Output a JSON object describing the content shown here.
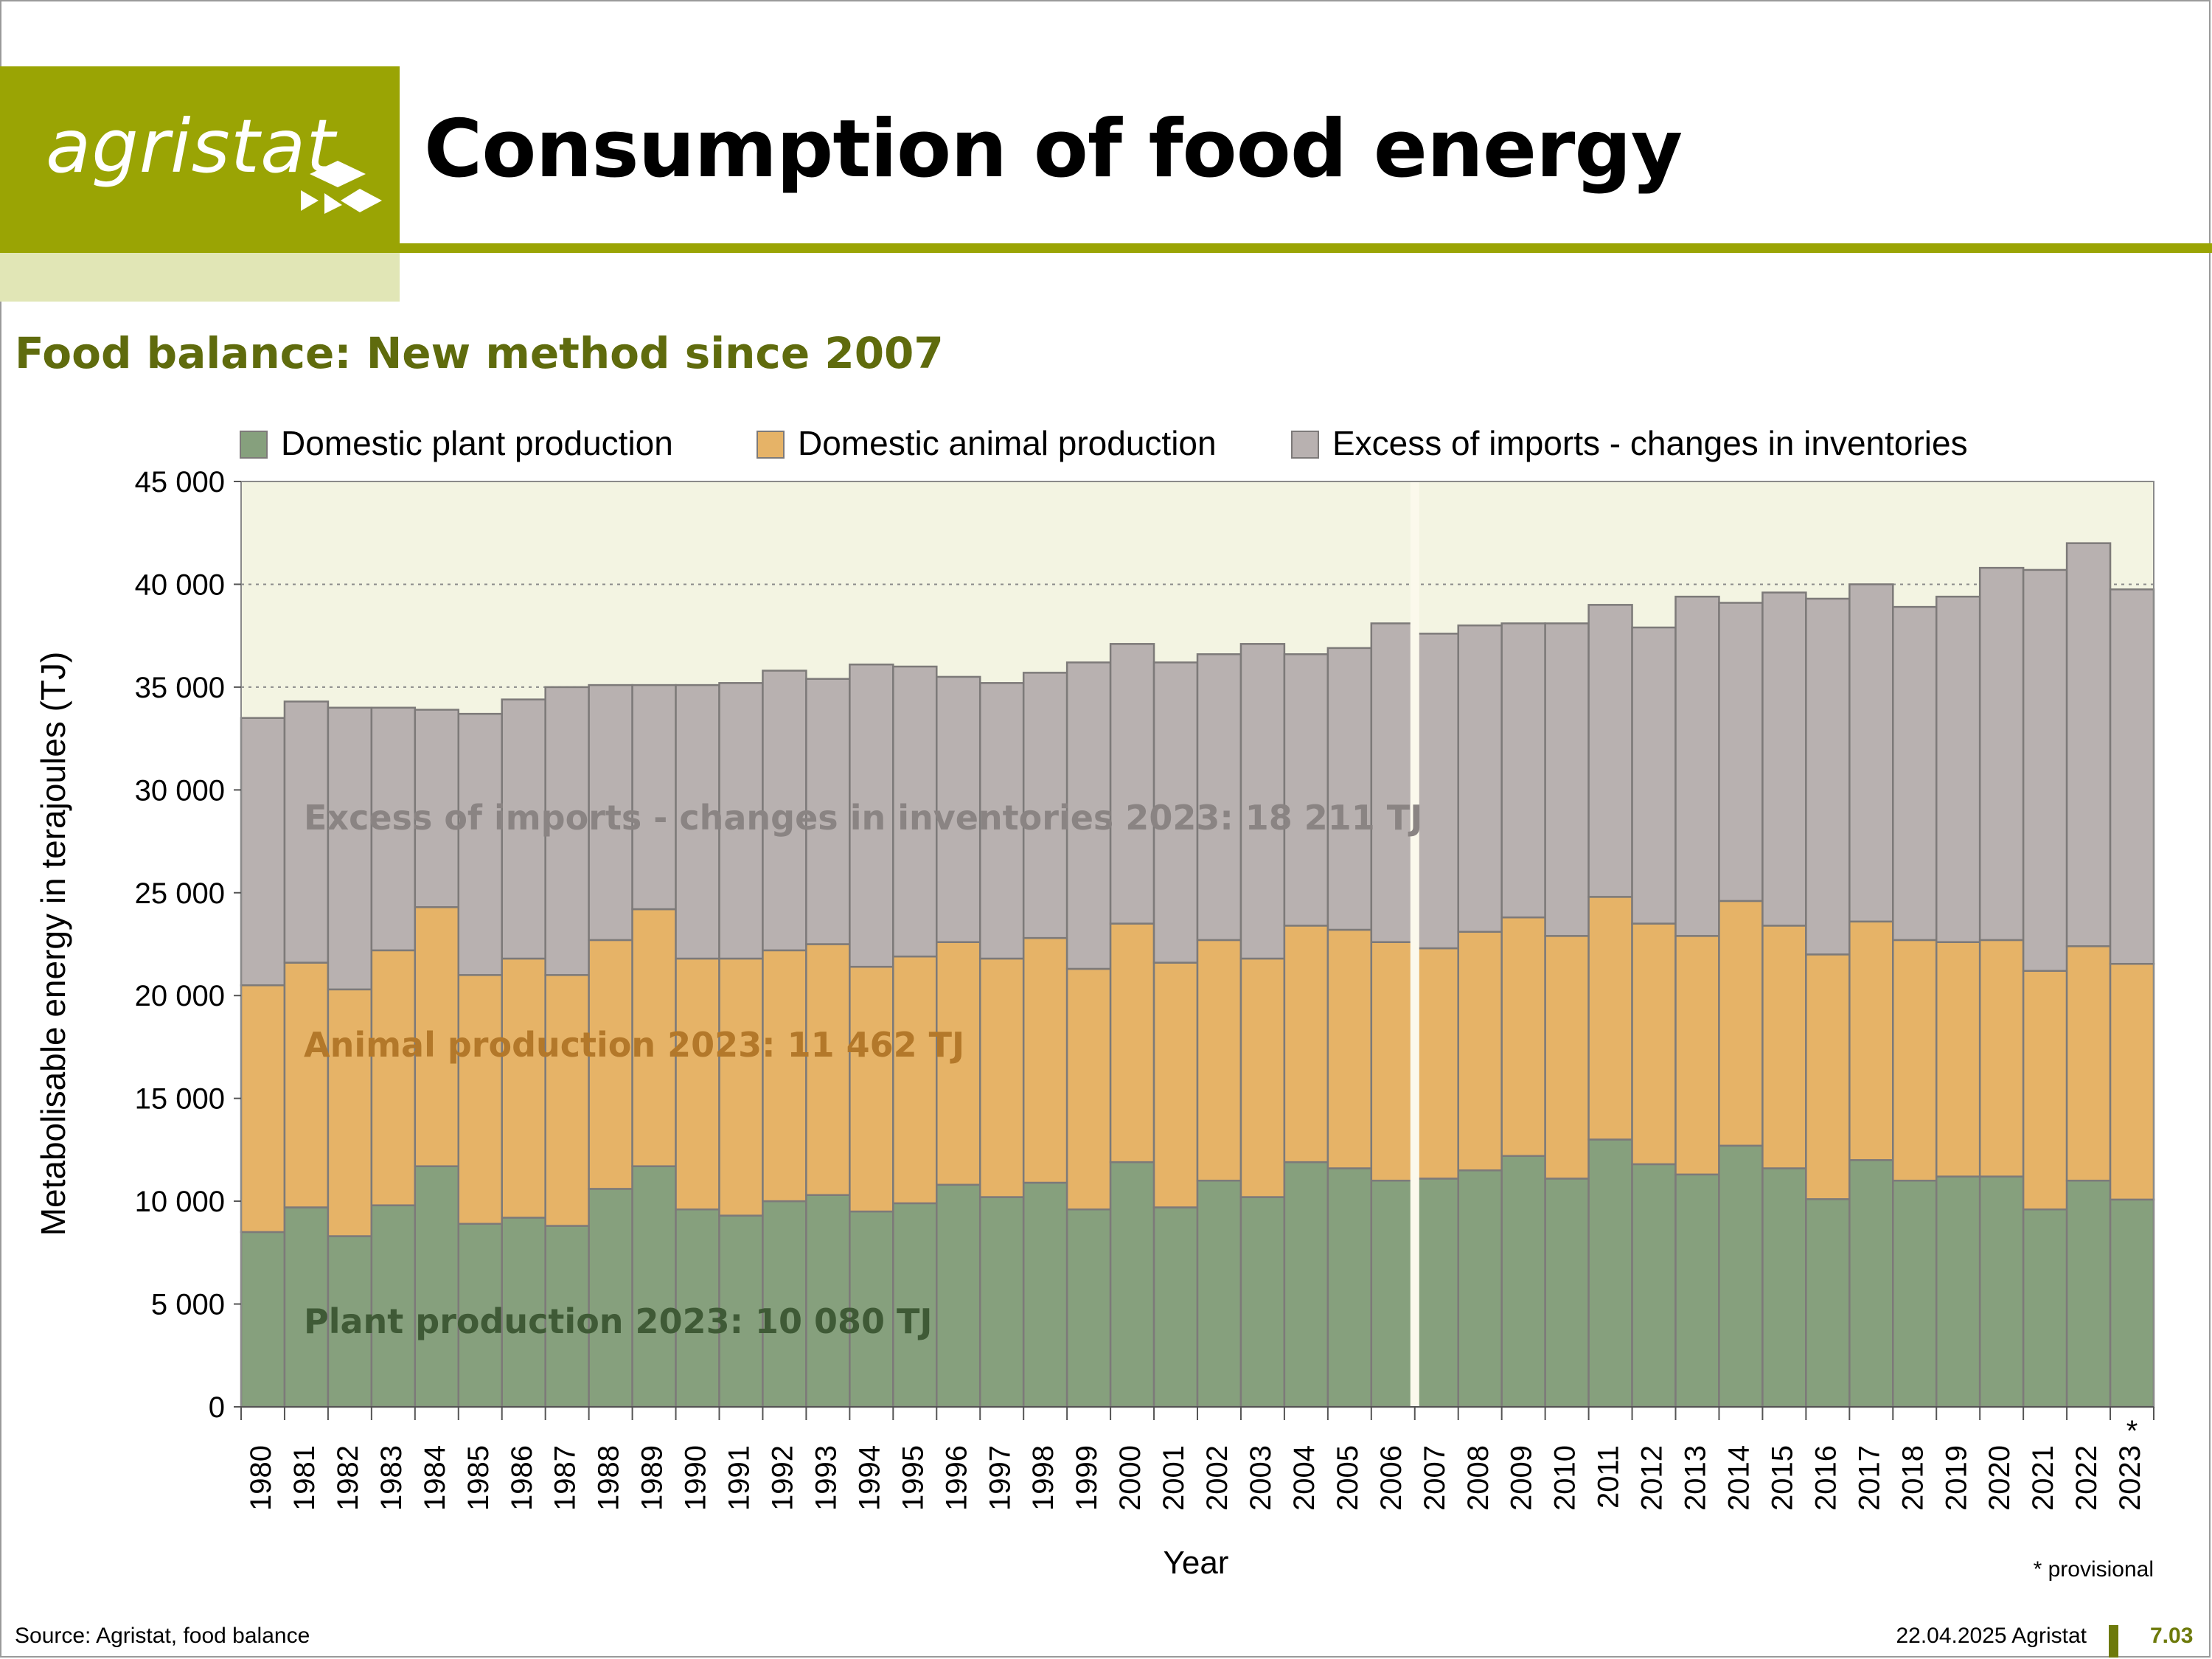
{
  "header": {
    "logo_text": "agristat",
    "title": "Consumption of food energy",
    "subtitle": "Food balance: New method since 2007"
  },
  "colors": {
    "brand_green": "#9aa404",
    "brand_light": "#e1e6b6",
    "subtitle": "#5f6b0d",
    "plant": "#86a07d",
    "animal": "#e6b367",
    "imports": "#b8b1b0",
    "plot_bg": "#f3f4e2"
  },
  "chart_data": {
    "type": "bar",
    "stacked": true,
    "categories": [
      "1980",
      "1981",
      "1982",
      "1983",
      "1984",
      "1985",
      "1986",
      "1987",
      "1988",
      "1989",
      "1990",
      "1991",
      "1992",
      "1993",
      "1994",
      "1995",
      "1996",
      "1997",
      "1998",
      "1999",
      "2000",
      "2001",
      "2002",
      "2003",
      "2004",
      "2005",
      "2006",
      "2007",
      "2008",
      "2009",
      "2010",
      "2011",
      "2012",
      "2013",
      "2014",
      "2015",
      "2016",
      "2017",
      "2018",
      "2019",
      "2020",
      "2021",
      "2022",
      "2023"
    ],
    "provisional_marker": {
      "category": "2023",
      "symbol": "*"
    },
    "method_break_after": "2006",
    "series": [
      {
        "name": "Domestic plant production",
        "color": "#86a07d",
        "values": [
          8500,
          9700,
          8300,
          9800,
          11700,
          8900,
          9200,
          8800,
          10600,
          11700,
          9600,
          9300,
          10000,
          10300,
          9500,
          9900,
          10800,
          10200,
          10900,
          9600,
          11900,
          9700,
          11000,
          10200,
          11900,
          11600,
          11000,
          11100,
          11500,
          12200,
          11100,
          13000,
          11800,
          11300,
          12700,
          11600,
          10100,
          12000,
          11000,
          11200,
          11200,
          9600,
          11000,
          10080
        ]
      },
      {
        "name": "Domestic animal production",
        "color": "#e6b367",
        "values": [
          12000,
          11900,
          12000,
          12400,
          12600,
          12100,
          12600,
          12200,
          12100,
          12500,
          12200,
          12500,
          12200,
          12200,
          11900,
          12000,
          11800,
          11600,
          11900,
          11700,
          11600,
          11900,
          11700,
          11600,
          11500,
          11600,
          11600,
          11200,
          11600,
          11600,
          11800,
          11800,
          11700,
          11600,
          11900,
          11800,
          11900,
          11600,
          11700,
          11400,
          11500,
          11600,
          11400,
          11462
        ]
      },
      {
        "name": "Excess of imports - changes in inventories",
        "color": "#b8b1b0",
        "values": [
          13000,
          12700,
          13700,
          11800,
          9600,
          12700,
          12600,
          14000,
          12400,
          10900,
          13300,
          13400,
          13600,
          12900,
          14700,
          14100,
          12900,
          13400,
          12900,
          14900,
          13600,
          14600,
          13900,
          15300,
          13200,
          13700,
          15500,
          15300,
          14900,
          14300,
          15200,
          14200,
          14400,
          16500,
          14500,
          16200,
          17300,
          16400,
          16200,
          16800,
          18100,
          19500,
          19600,
          18211
        ]
      }
    ],
    "ylabel": "Metabolisable energy in terajoules (TJ)",
    "xlabel": "Year",
    "ylim": [
      0,
      45000
    ],
    "yticks": [
      0,
      5000,
      10000,
      15000,
      20000,
      25000,
      30000,
      35000,
      40000,
      45000
    ],
    "ytick_labels": [
      "0",
      "5 000",
      "10 000",
      "15 000",
      "20 000",
      "25 000",
      "30 000",
      "35 000",
      "40 000",
      "45 000"
    ],
    "grid": "horizontal dotted",
    "legend_position": "top",
    "annotations": [
      {
        "text": "Excess of imports - changes in inventories 2023: 18 211 TJ",
        "color": "#8a8483"
      },
      {
        "text": "Animal production 2023: 11 462 TJ",
        "color": "#b3782a"
      },
      {
        "text": "Plant production 2023: 10 080 TJ",
        "color": "#3f5a36"
      }
    ],
    "note": "* provisional"
  },
  "footer": {
    "source": "Source: Agristat, food balance",
    "date": "22.04.2025 Agristat",
    "page": "7.03"
  }
}
